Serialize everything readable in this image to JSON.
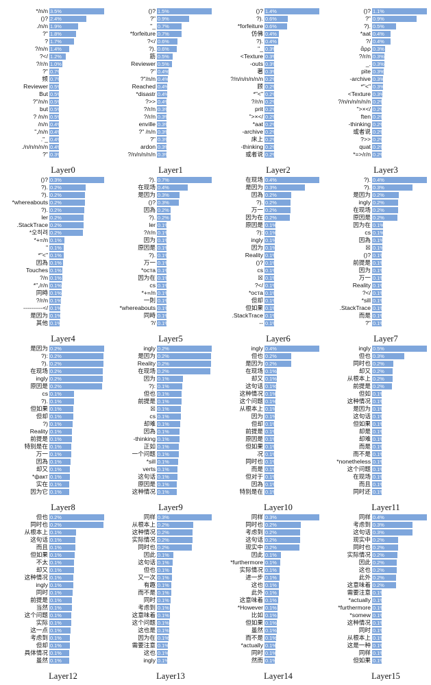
{
  "chart_data": [
    {
      "type": "bar",
      "title": "Layer0",
      "categories": [
        "*/n/n",
        "()?",
        "./n/n",
        "?\"",
        "?",
        "?/n/n",
        "?</",
        "?/r/n",
        "?\"",
        "频",
        "Reviewer",
        "But",
        "?\"/n/n",
        "but",
        "? /n/n",
        "/n/n",
        "\",/n/n",
        ".\"_",
        "./n/n/n/n/n",
        "?\""
      ],
      "values": [
        3.5,
        2.4,
        1.9,
        1.8,
        1.7,
        1.4,
        1.2,
        1.0,
        0.7,
        0.7,
        0.5,
        0.5,
        0.5,
        0.5,
        0.5,
        0.4,
        0.4,
        0.4,
        0.4,
        0.3
      ]
    },
    {
      "type": "bar",
      "title": "Layer1",
      "categories": [
        "()?",
        "?\"",
        "\"_",
        "*forfeiture",
        "?</",
        "?).",
        "筋",
        "Reviewer",
        "?\"",
        "?\"/n/n",
        "Reached",
        "*disastr",
        "?>>",
        "?/r/n",
        "?/r/n",
        "enville",
        "?\" /n/n",
        "?\"",
        "ardon",
        "?/n/n/n/n/n"
      ],
      "values": [
        1.5,
        0.9,
        0.7,
        0.7,
        0.6,
        0.6,
        0.5,
        0.5,
        0.4,
        0.4,
        0.4,
        0.4,
        0.4,
        0.3,
        0.3,
        0.3,
        0.3,
        0.3,
        0.3,
        0.3
      ]
    },
    {
      "type": "bar",
      "title": "Layer2",
      "categories": [
        "()?",
        "?).",
        "*forfeiture",
        "仿佛",
        "?).",
        "\"_",
        "<Texture",
        "-outs",
        "著",
        "?/n/n/n/n/n/n",
        "顾",
        "*\"<\"",
        "?/r/n",
        "prit",
        "\">×</",
        "*aat",
        "-archive",
        "床上",
        "-thinking",
        "或者说"
      ],
      "values": [
        1.4,
        0.6,
        0.6,
        0.4,
        0.4,
        0.3,
        0.3,
        0.3,
        0.3,
        0.2,
        0.2,
        0.2,
        0.2,
        0.2,
        0.2,
        0.2,
        0.2,
        0.2,
        0.2,
        0.2
      ]
    },
    {
      "type": "bar",
      "title": "Layer3",
      "categories": [
        "()?",
        "?\"",
        "?).",
        "*aat",
        "?/",
        "ἄρρ",
        "?/r/n",
        "_.",
        "pite",
        "-archive",
        "*\"<\"",
        "<Texture",
        "?/n/n/n/n/n/n",
        "\">×</",
        "ften",
        "-thinking",
        "或者说",
        "?>>",
        "quat",
        "*=>/r/n"
      ],
      "values": [
        1.1,
        0.9,
        0.5,
        0.4,
        0.4,
        0.3,
        0.3,
        0.3,
        0.3,
        0.3,
        0.3,
        0.3,
        0.2,
        0.2,
        0.2,
        0.2,
        0.2,
        0.2,
        0.2,
        0.2
      ]
    },
    {
      "type": "bar",
      "title": "Layer4",
      "categories": [
        "()?",
        "?).",
        "?).",
        "*whereabouts",
        "?).",
        "ler",
        ".StackTrace",
        "*오히려",
        "*+=/n",
        "\"",
        "*\"<\"",
        "因為",
        "Touches",
        "?/n",
        "*\",/r/n",
        "同時",
        "?/r/n",
        "----------</",
        "是因为",
        "其他"
      ],
      "values": [
        0.3,
        0.2,
        0.2,
        0.2,
        0.2,
        0.2,
        0.2,
        0.2,
        0.1,
        0.1,
        0.1,
        0.1,
        0.1,
        0.1,
        0.1,
        0.1,
        0.1,
        0.1,
        0.1,
        0.1
      ]
    },
    {
      "type": "bar",
      "title": "Layer5",
      "categories": [
        "?).",
        "在现场",
        "是因为",
        "()?",
        "因為",
        "?).",
        "ler",
        "?/r/n",
        "因为",
        "原因是",
        "?).",
        "万一",
        "*оста",
        "因为在",
        "сs",
        "*+=/n",
        "一則",
        "*whereabouts",
        "同時",
        "?/"
      ],
      "values": [
        0.7,
        0.4,
        0.3,
        0.3,
        0.2,
        0.2,
        0.1,
        0.1,
        0.1,
        0.1,
        0.1,
        0.1,
        0.1,
        0.1,
        0.1,
        0.1,
        0.1,
        0.1,
        0.1,
        0.1
      ]
    },
    {
      "type": "bar",
      "title": "Layer6",
      "categories": [
        "在现场",
        "是因为",
        "因為",
        "?).",
        "万一",
        "因为在",
        "原因是",
        "?):",
        "ingly",
        "因为",
        "Reality",
        "()?",
        "сs",
        "☒",
        "?</",
        "*оста",
        "但却",
        "但如果",
        ".StackTrace",
        "--"
      ],
      "values": [
        0.4,
        0.3,
        0.2,
        0.2,
        0.2,
        0.2,
        0.1,
        0.1,
        0.1,
        0.1,
        0.1,
        0.1,
        0.1,
        0.1,
        0.1,
        0.1,
        0.1,
        0.1,
        0.1,
        0.1
      ]
    },
    {
      "type": "bar",
      "title": "Layer7",
      "categories": [
        "?).",
        "?).",
        "是因为",
        "ingly",
        "在现场",
        "原因是",
        "因为在",
        "сs",
        "因為",
        "☒",
        "()?",
        "前提是",
        "因为",
        "万一",
        "Reality",
        "?</",
        "*sill",
        ".StackTrace",
        "而是",
        "?\""
      ],
      "values": [
        0.4,
        0.3,
        0.2,
        0.2,
        0.2,
        0.2,
        0.1,
        0.1,
        0.1,
        0.1,
        0.1,
        0.1,
        0.1,
        0.1,
        0.1,
        0.1,
        0.1,
        0.1,
        0.1,
        0.1
      ]
    },
    {
      "type": "bar",
      "title": "Layer8",
      "categories": [
        "是因为",
        "?):",
        "?).",
        "在现场",
        "ingly",
        "原因是",
        "сs",
        "?).",
        "但如果",
        "但却",
        "?)",
        "Reality",
        "前提是",
        "特别是在",
        "万一",
        "因為",
        "却又",
        "*факт",
        "实在",
        "因为它"
      ],
      "values": [
        0.2,
        0.2,
        0.2,
        0.2,
        0.2,
        0.2,
        0.1,
        0.1,
        0.1,
        0.1,
        0.1,
        0.1,
        0.1,
        0.1,
        0.1,
        0.1,
        0.1,
        0.1,
        0.1,
        0.1
      ]
    },
    {
      "type": "bar",
      "title": "Layer9",
      "categories": [
        "ingly",
        "是因为",
        "Reality",
        "在现场",
        "因为",
        "?):",
        "但也",
        "前提是",
        "☒",
        "сs",
        "却难",
        "因為",
        "-thinking",
        "正如",
        "一个问题",
        "*sill",
        "verts",
        "这句话",
        "原因是",
        "这种情况"
      ],
      "values": [
        0.2,
        0.2,
        0.2,
        0.2,
        0.1,
        0.1,
        0.1,
        0.1,
        0.1,
        0.1,
        0.1,
        0.1,
        0.1,
        0.1,
        0.1,
        0.1,
        0.1,
        0.1,
        0.1,
        0.1
      ]
    },
    {
      "type": "bar",
      "title": "Layer10",
      "categories": [
        "ingly",
        "但也",
        "是因为",
        "在现场",
        "却又",
        "这句话",
        "这种情况",
        "这个问题",
        "从根本上",
        "因为",
        "但却",
        "前提是",
        "原因是",
        "但如果",
        "况",
        "同时也",
        "而是",
        "但对于",
        "因為",
        "特别是在"
      ],
      "values": [
        0.4,
        0.2,
        0.2,
        0.1,
        0.1,
        0.1,
        0.1,
        0.1,
        0.1,
        0.1,
        0.1,
        0.1,
        0.1,
        0.1,
        0.1,
        0.1,
        0.1,
        0.1,
        0.1,
        0.1
      ]
    },
    {
      "type": "bar",
      "title": "Layer11",
      "categories": [
        "ingly",
        "但也",
        "同时也",
        "却又",
        "从根本上",
        "前提是",
        "但如",
        "这种情况",
        "是因为",
        "这句话",
        "但如果",
        "却是",
        "却难",
        "而是",
        "而不是",
        "*nonetheless",
        "这个问题",
        "在现场",
        "而且",
        "同时还"
      ],
      "values": [
        0.5,
        0.3,
        0.2,
        0.2,
        0.2,
        0.2,
        0.1,
        0.1,
        0.1,
        0.1,
        0.1,
        0.1,
        0.1,
        0.1,
        0.1,
        0.1,
        0.1,
        0.1,
        0.1,
        0.1
      ]
    },
    {
      "type": "bar",
      "title": "Layer12",
      "categories": [
        "但也",
        "同时也",
        "从根本上",
        "这句话",
        "而且",
        "但如果",
        "不太",
        "却又",
        "这种情况",
        "ingly",
        "同时",
        "前提是",
        "当然",
        "这个问题",
        "实际",
        "这一点",
        "考虑到",
        "但却",
        "具体情况",
        "虽然"
      ],
      "values": [
        0.2,
        0.2,
        0.1,
        0.1,
        0.1,
        0.1,
        0.1,
        0.1,
        0.1,
        0.1,
        0.1,
        0.1,
        0.1,
        0.1,
        0.1,
        0.1,
        0.1,
        0.1,
        0.1,
        0.1
      ]
    },
    {
      "type": "bar",
      "title": "Layer13",
      "categories": [
        "同样",
        "从根本上",
        "这种情况",
        "实际情况",
        "同时也",
        "因此",
        "这句话",
        "但也",
        "又一次",
        "有趣",
        "而不是",
        "同时",
        "考虑到",
        "这意味着",
        "这个问题",
        "这也是",
        "因为在",
        "需要注意",
        "这也",
        "ingly"
      ],
      "values": [
        0.3,
        0.2,
        0.2,
        0.2,
        0.2,
        0.1,
        0.1,
        0.1,
        0.1,
        0.1,
        0.1,
        0.1,
        0.1,
        0.1,
        0.1,
        0.1,
        0.1,
        0.1,
        0.1,
        0.1
      ]
    },
    {
      "type": "bar",
      "title": "Layer14",
      "categories": [
        "同样",
        "同时也",
        "考虑到",
        "这句话",
        "现实中",
        "因此",
        "*furthermore",
        "实际情况",
        "进一步",
        "这也",
        "此外",
        "这意味着",
        "*However",
        "比如",
        "但如果",
        "虽然",
        "而不是",
        "*actually",
        "同时",
        "然而"
      ],
      "values": [
        0.3,
        0.2,
        0.2,
        0.2,
        0.2,
        0.1,
        0.1,
        0.1,
        0.1,
        0.1,
        0.1,
        0.1,
        0.1,
        0.1,
        0.1,
        0.1,
        0.1,
        0.1,
        0.1,
        0.1
      ]
    },
    {
      "type": "bar",
      "title": "Layer15",
      "categories": [
        "同样",
        "考虑到",
        "这句话",
        "现实中",
        "同时也",
        "实际情况",
        "因此",
        "这也",
        "此外",
        "这意味着",
        "需要注意",
        "*actually",
        "*furthermore",
        "*somew",
        "这种情况",
        "同时",
        "从根本上",
        "这是一种",
        "同样",
        "但如果"
      ],
      "values": [
        0.4,
        0.3,
        0.3,
        0.2,
        0.2,
        0.2,
        0.2,
        0.2,
        0.2,
        0.2,
        0.1,
        0.1,
        0.1,
        0.1,
        0.1,
        0.1,
        0.1,
        0.1,
        0.1,
        0.1
      ]
    }
  ]
}
